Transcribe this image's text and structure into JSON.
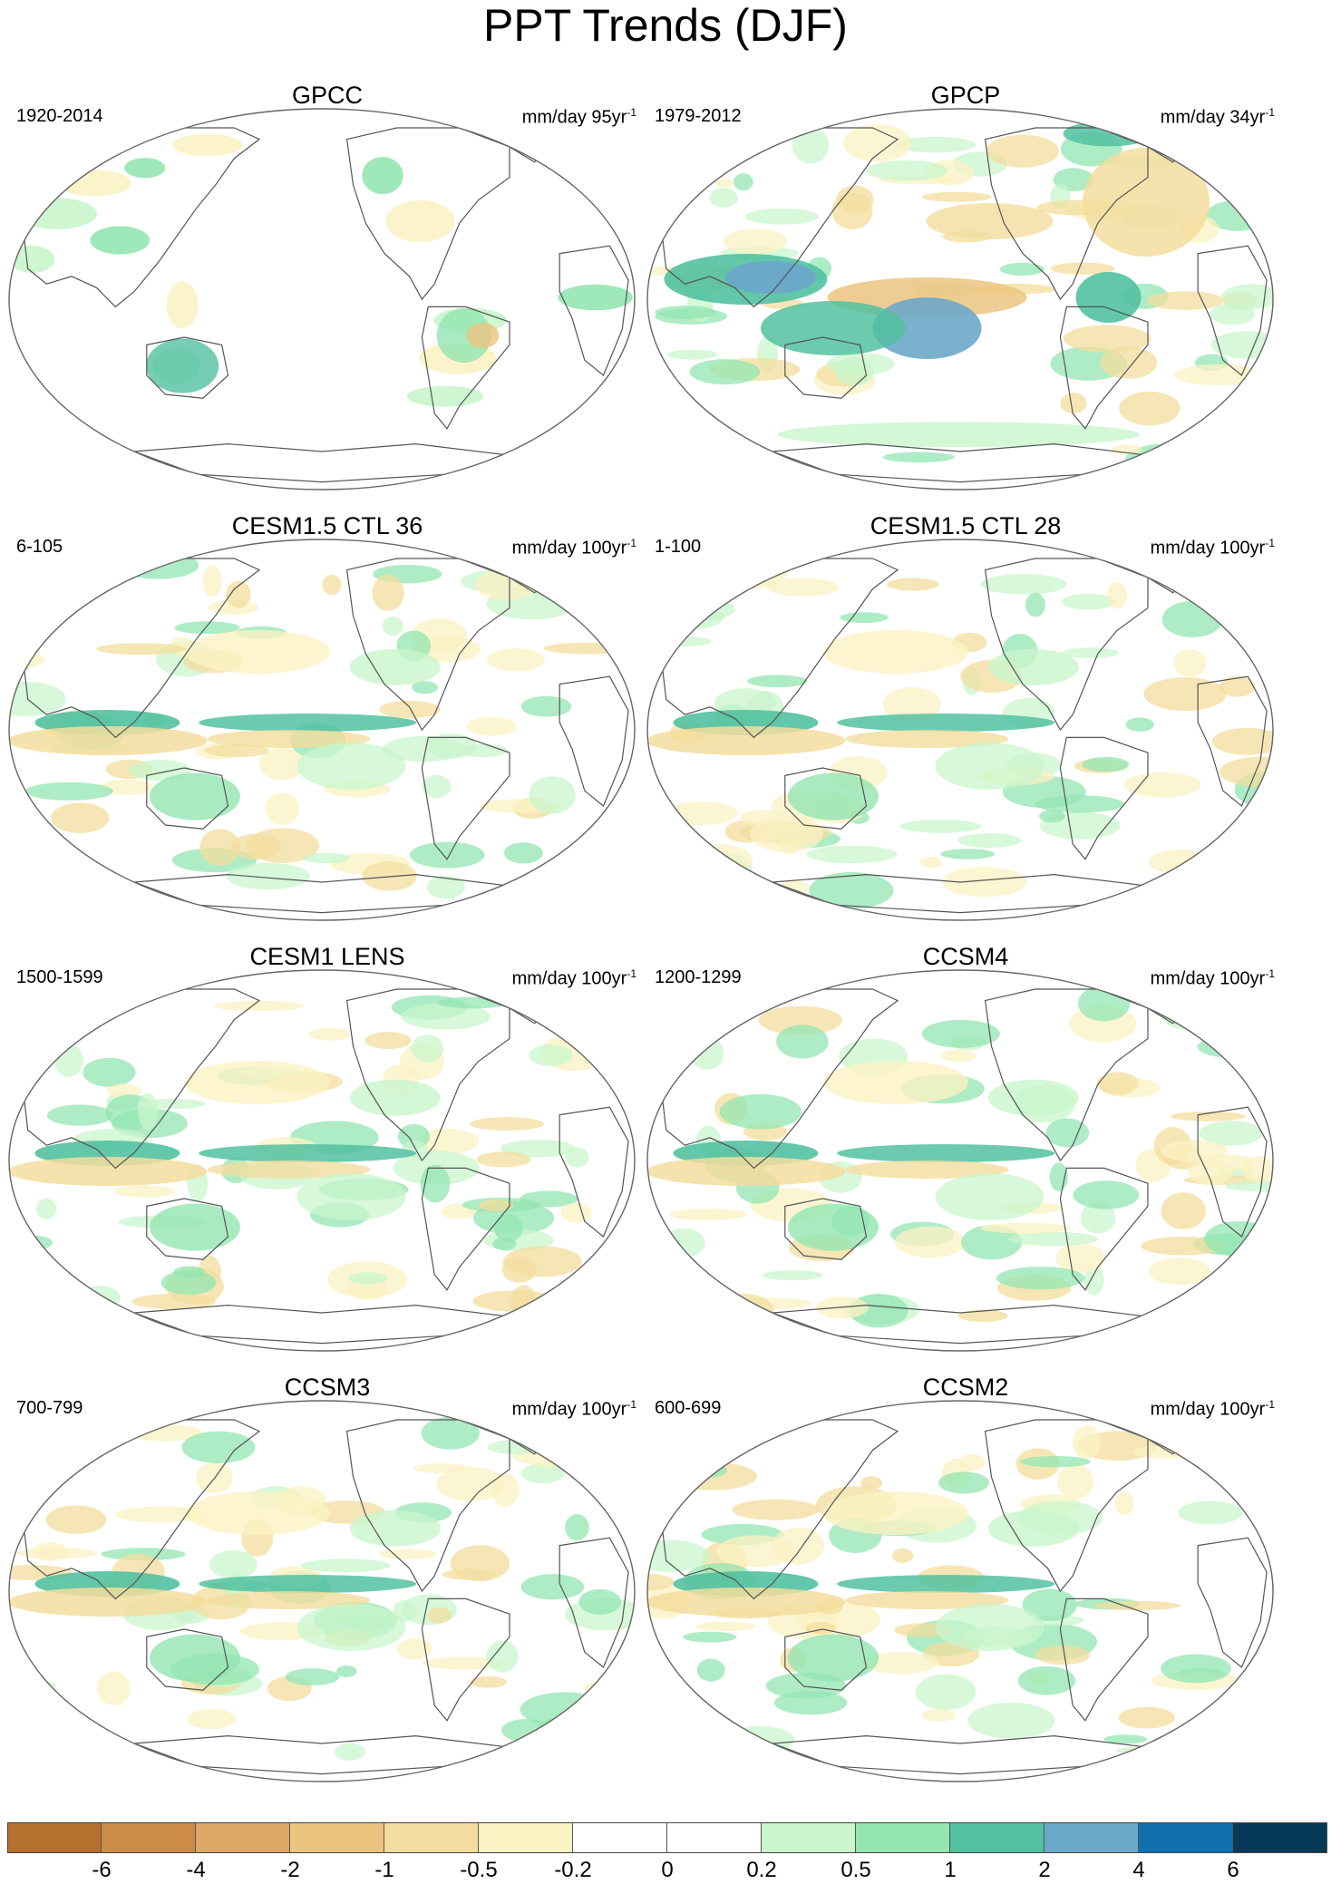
{
  "title": "PPT Trends (DJF)",
  "panels": [
    {
      "name": "GPCC",
      "period": "1920-2014",
      "units": "mm/day 95yr",
      "exp": "-1",
      "variant": "gpcc"
    },
    {
      "name": "GPCP",
      "period": "1979-2012",
      "units": "mm/day 34yr",
      "exp": "-1",
      "variant": "gpcp"
    },
    {
      "name": "CESM1.5 CTL 36",
      "period": "6-105",
      "units": "mm/day 100yr",
      "exp": "-1",
      "variant": "model"
    },
    {
      "name": "CESM1.5 CTL 28",
      "period": "1-100",
      "units": "mm/day 100yr",
      "exp": "-1",
      "variant": "model"
    },
    {
      "name": "CESM1 LENS",
      "period": "1500-1599",
      "units": "mm/day 100yr",
      "exp": "-1",
      "variant": "model"
    },
    {
      "name": "CCSM4",
      "period": "1200-1299",
      "units": "mm/day 100yr",
      "exp": "-1",
      "variant": "model"
    },
    {
      "name": "CCSM3",
      "period": "700-799",
      "units": "mm/day 100yr",
      "exp": "-1",
      "variant": "model"
    },
    {
      "name": "CCSM2",
      "period": "600-699",
      "units": "mm/day 100yr",
      "exp": "-1",
      "variant": "model"
    }
  ],
  "colorbar": {
    "colors": [
      "#b5702e",
      "#cc8c48",
      "#dda768",
      "#ecc47f",
      "#f3dd9e",
      "#fbf2c3",
      "#ffffff",
      "#ffffff",
      "#c9f5cc",
      "#93e5b1",
      "#52c1a0",
      "#6ba8c9",
      "#1070b0",
      "#063a58"
    ],
    "labels": [
      "-6",
      "-4",
      "-2",
      "-1",
      "-0.5",
      "-0.2",
      "0",
      "0.2",
      "0.5",
      "1",
      "2",
      "4",
      "6"
    ]
  }
}
